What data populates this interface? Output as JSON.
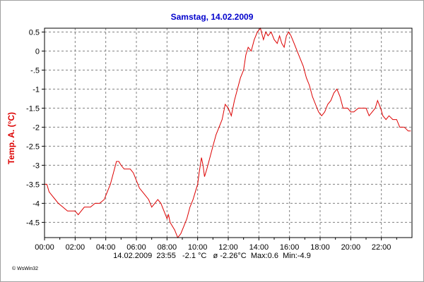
{
  "colors": {
    "title": "#0000cc",
    "ylabel": "#dd0000",
    "series": "#dd0000",
    "grid": "#808080"
  },
  "chart_data": {
    "type": "line",
    "title": "Samstag, 14.02.2009",
    "xlabel": "",
    "ylabel": "Temp. A.  (°C)",
    "xlim": [
      0,
      24
    ],
    "ylim": [
      -4.9,
      0.6
    ],
    "grid": true,
    "x_ticks": [
      {
        "value": 0,
        "label": "00:00"
      },
      {
        "value": 2,
        "label": "02:00"
      },
      {
        "value": 4,
        "label": "04:00"
      },
      {
        "value": 6,
        "label": "06:00"
      },
      {
        "value": 8,
        "label": "08:00"
      },
      {
        "value": 10,
        "label": "10:00"
      },
      {
        "value": 12,
        "label": "12:00"
      },
      {
        "value": 14,
        "label": "14:00"
      },
      {
        "value": 16,
        "label": "16:00"
      },
      {
        "value": 18,
        "label": "18:00"
      },
      {
        "value": 20,
        "label": "20:00"
      },
      {
        "value": 22,
        "label": "22:00"
      }
    ],
    "y_ticks": [
      {
        "value": 0.5,
        "label": "0.5"
      },
      {
        "value": 0,
        "label": "0"
      },
      {
        "value": -0.5,
        "label": "-.5"
      },
      {
        "value": -1,
        "label": "-1"
      },
      {
        "value": -1.5,
        "label": "-1.5"
      },
      {
        "value": -2,
        "label": "-2"
      },
      {
        "value": -2.5,
        "label": "-2.5"
      },
      {
        "value": -3,
        "label": "-3"
      },
      {
        "value": -3.5,
        "label": "-3.5"
      },
      {
        "value": -4,
        "label": "-4"
      },
      {
        "value": -4.5,
        "label": "-4.5"
      }
    ],
    "series": [
      {
        "points": [
          [
            0.0,
            -3.5
          ],
          [
            0.15,
            -3.5
          ],
          [
            0.3,
            -3.7
          ],
          [
            0.5,
            -3.8
          ],
          [
            0.7,
            -3.9
          ],
          [
            0.9,
            -4.0
          ],
          [
            1.2,
            -4.1
          ],
          [
            1.5,
            -4.2
          ],
          [
            1.8,
            -4.2
          ],
          [
            2.0,
            -4.2
          ],
          [
            2.2,
            -4.3
          ],
          [
            2.4,
            -4.2
          ],
          [
            2.6,
            -4.1
          ],
          [
            3.0,
            -4.1
          ],
          [
            3.3,
            -4.0
          ],
          [
            3.6,
            -4.0
          ],
          [
            3.9,
            -3.9
          ],
          [
            4.1,
            -3.7
          ],
          [
            4.3,
            -3.5
          ],
          [
            4.5,
            -3.2
          ],
          [
            4.7,
            -2.9
          ],
          [
            4.85,
            -2.9
          ],
          [
            5.0,
            -3.0
          ],
          [
            5.2,
            -3.1
          ],
          [
            5.6,
            -3.1
          ],
          [
            5.8,
            -3.2
          ],
          [
            6.0,
            -3.4
          ],
          [
            6.2,
            -3.6
          ],
          [
            6.4,
            -3.7
          ],
          [
            6.6,
            -3.8
          ],
          [
            6.8,
            -3.9
          ],
          [
            7.0,
            -4.1
          ],
          [
            7.2,
            -4.0
          ],
          [
            7.4,
            -3.9
          ],
          [
            7.6,
            -4.0
          ],
          [
            7.8,
            -4.2
          ],
          [
            8.0,
            -4.4
          ],
          [
            8.1,
            -4.3
          ],
          [
            8.2,
            -4.5
          ],
          [
            8.35,
            -4.6
          ],
          [
            8.5,
            -4.7
          ],
          [
            8.7,
            -4.9
          ],
          [
            8.9,
            -4.8
          ],
          [
            9.1,
            -4.6
          ],
          [
            9.3,
            -4.4
          ],
          [
            9.5,
            -4.1
          ],
          [
            9.7,
            -3.9
          ],
          [
            9.85,
            -3.7
          ],
          [
            10.0,
            -3.5
          ],
          [
            10.1,
            -3.2
          ],
          [
            10.25,
            -2.8
          ],
          [
            10.35,
            -3.0
          ],
          [
            10.45,
            -3.3
          ],
          [
            10.6,
            -3.1
          ],
          [
            10.8,
            -2.8
          ],
          [
            11.0,
            -2.5
          ],
          [
            11.2,
            -2.2
          ],
          [
            11.4,
            -2.0
          ],
          [
            11.6,
            -1.8
          ],
          [
            11.8,
            -1.4
          ],
          [
            12.0,
            -1.5
          ],
          [
            12.2,
            -1.7
          ],
          [
            12.4,
            -1.3
          ],
          [
            12.6,
            -1.0
          ],
          [
            12.8,
            -0.7
          ],
          [
            13.0,
            -0.5
          ],
          [
            13.15,
            -0.1
          ],
          [
            13.3,
            0.1
          ],
          [
            13.5,
            0.0
          ],
          [
            13.7,
            0.3
          ],
          [
            13.9,
            0.5
          ],
          [
            14.1,
            0.6
          ],
          [
            14.3,
            0.3
          ],
          [
            14.45,
            0.5
          ],
          [
            14.6,
            0.4
          ],
          [
            14.8,
            0.5
          ],
          [
            15.0,
            0.3
          ],
          [
            15.2,
            0.2
          ],
          [
            15.35,
            0.4
          ],
          [
            15.5,
            0.2
          ],
          [
            15.65,
            0.1
          ],
          [
            15.8,
            0.4
          ],
          [
            15.95,
            0.5
          ],
          [
            16.1,
            0.4
          ],
          [
            16.3,
            0.2
          ],
          [
            16.5,
            0.0
          ],
          [
            16.7,
            -0.2
          ],
          [
            16.9,
            -0.4
          ],
          [
            17.1,
            -0.7
          ],
          [
            17.3,
            -0.9
          ],
          [
            17.5,
            -1.2
          ],
          [
            17.7,
            -1.4
          ],
          [
            17.9,
            -1.6
          ],
          [
            18.1,
            -1.7
          ],
          [
            18.3,
            -1.6
          ],
          [
            18.5,
            -1.4
          ],
          [
            18.7,
            -1.3
          ],
          [
            18.9,
            -1.1
          ],
          [
            19.1,
            -1.0
          ],
          [
            19.3,
            -1.2
          ],
          [
            19.5,
            -1.5
          ],
          [
            19.8,
            -1.5
          ],
          [
            20.0,
            -1.6
          ],
          [
            20.2,
            -1.6
          ],
          [
            20.5,
            -1.5
          ],
          [
            20.8,
            -1.5
          ],
          [
            21.0,
            -1.5
          ],
          [
            21.2,
            -1.7
          ],
          [
            21.4,
            -1.6
          ],
          [
            21.6,
            -1.5
          ],
          [
            21.75,
            -1.3
          ],
          [
            21.95,
            -1.5
          ],
          [
            22.1,
            -1.7
          ],
          [
            22.3,
            -1.8
          ],
          [
            22.5,
            -1.7
          ],
          [
            22.75,
            -1.8
          ],
          [
            23.0,
            -1.8
          ],
          [
            23.2,
            -2.0
          ],
          [
            23.5,
            -2.0
          ],
          [
            23.75,
            -2.1
          ],
          [
            23.92,
            -2.1
          ]
        ]
      }
    ]
  },
  "footer": {
    "text": "14.02.2009  23:55   -2.1 °C   ø -2.26°C  Max:0.6  Min:-4.9"
  },
  "watermark": {
    "text": "© WsWin32"
  }
}
